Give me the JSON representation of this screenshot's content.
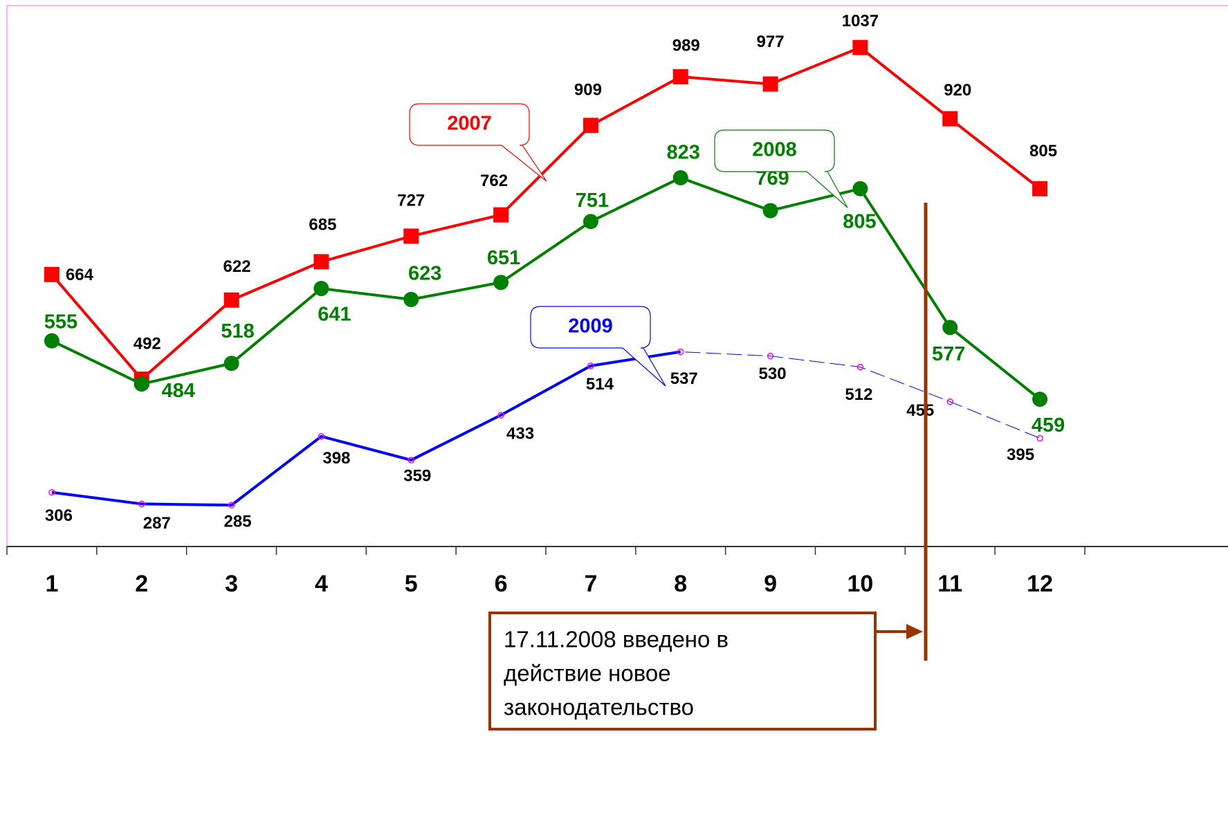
{
  "chart_data": {
    "type": "line",
    "categories": [
      "1",
      "2",
      "3",
      "4",
      "5",
      "6",
      "7",
      "8",
      "9",
      "10",
      "11",
      "12"
    ],
    "series": [
      {
        "name": "2007",
        "color": "#ff0000",
        "marker": "square",
        "values": [
          664,
          492,
          622,
          685,
          727,
          762,
          909,
          989,
          977,
          1037,
          920,
          805
        ]
      },
      {
        "name": "2008",
        "color": "#008000",
        "marker": "circle",
        "values": [
          555,
          484,
          518,
          641,
          623,
          651,
          751,
          823,
          769,
          805,
          577,
          459
        ]
      },
      {
        "name": "2009",
        "color": "#0000ff",
        "marker": "none",
        "values": [
          306,
          287,
          285,
          398,
          359,
          433,
          514,
          537,
          null,
          null,
          null,
          null
        ]
      },
      {
        "color": "#ff00ff",
        "line_color": "#0000ff",
        "dashed": true,
        "marker": "small-circle",
        "values": [
          306,
          287,
          285,
          398,
          359,
          433,
          514,
          537,
          530,
          512,
          455,
          395
        ]
      }
    ],
    "ylim": [
      217,
      1106
    ],
    "annotation": [
      "17.11.2008 введено в",
      "действие новое",
      "законодательство"
    ],
    "annotation_color": "#993300"
  }
}
